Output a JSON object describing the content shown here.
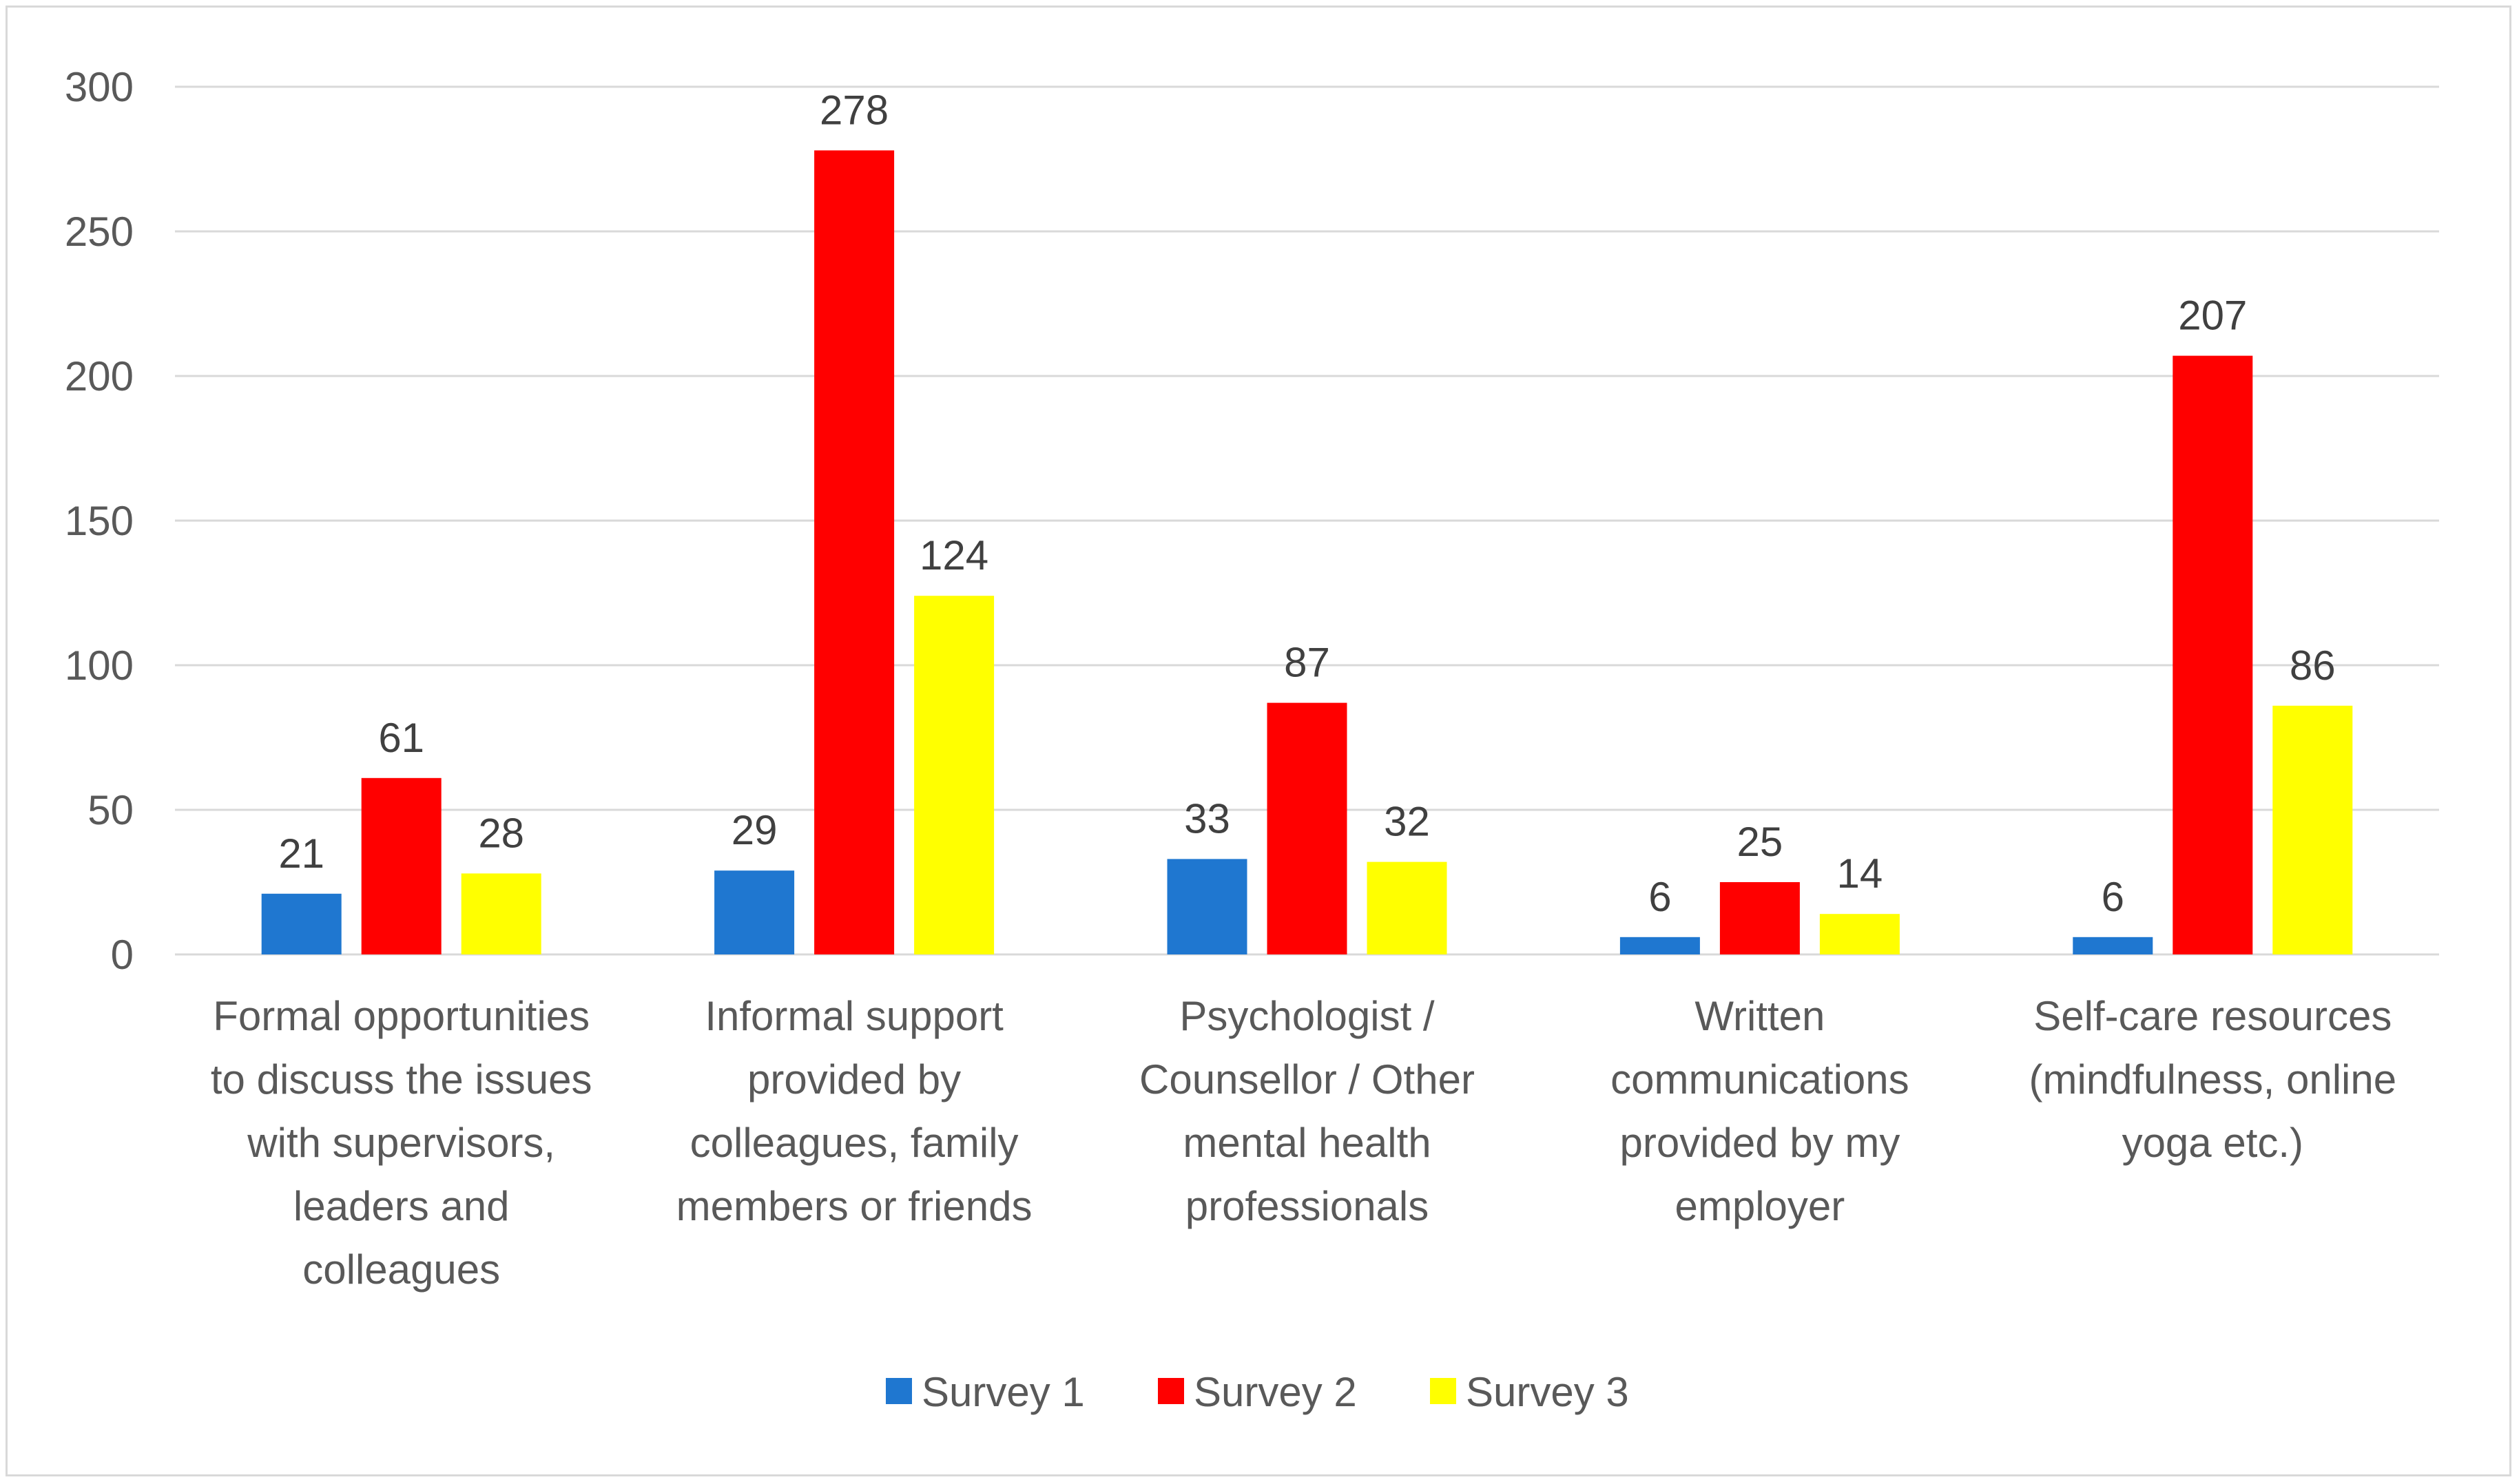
{
  "chart_data": {
    "type": "bar",
    "title": "",
    "xlabel": "",
    "ylabel": "",
    "ylim": [
      0,
      300
    ],
    "yticks": [
      0,
      50,
      100,
      150,
      200,
      250,
      300
    ],
    "grid": true,
    "legend_position": "bottom",
    "categories": [
      [
        "Formal opportunities",
        "to discuss the issues",
        "with supervisors,",
        "leaders and",
        "colleagues"
      ],
      [
        "Informal support",
        "provided by",
        "colleagues, family",
        "members or friends"
      ],
      [
        "Psychologist /",
        "Counsellor / Other",
        "mental health",
        "professionals"
      ],
      [
        "Written",
        "communications",
        "provided by my",
        "employer"
      ],
      [
        "Self-care resources",
        "(mindfulness, online",
        "yoga etc.)"
      ]
    ],
    "series": [
      {
        "name": "Survey 1",
        "color": "#1f77d0",
        "values": [
          21,
          29,
          33,
          6,
          6
        ]
      },
      {
        "name": "Survey 2",
        "color": "#ff0000",
        "values": [
          61,
          278,
          87,
          25,
          207
        ]
      },
      {
        "name": "Survey 3",
        "color": "#ffff00",
        "values": [
          28,
          124,
          32,
          14,
          86
        ]
      }
    ]
  }
}
